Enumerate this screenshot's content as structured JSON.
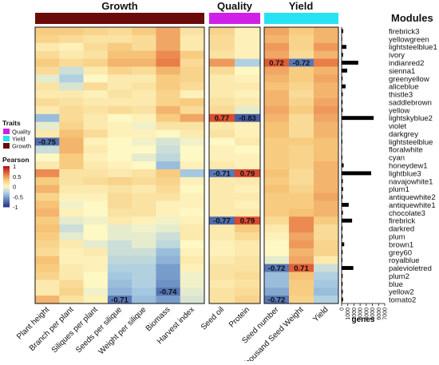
{
  "chart_data": {
    "type": "heatmap",
    "groups": [
      {
        "name": "Growth",
        "color": "#6b0a0a"
      },
      {
        "name": "Quality",
        "color": "#d020e8"
      },
      {
        "name": "Yield",
        "color": "#27e3f2"
      }
    ],
    "columns": [
      "Plant height",
      "Branch per plant",
      "Siliques per plant",
      "Seeds per silique",
      "Weight per silique",
      "Biomass",
      "Harvest index",
      "Seed oil",
      "Protein",
      "Seed number",
      "Thousand Seed Weight",
      "Yield"
    ],
    "column_groups": [
      "Growth",
      "Growth",
      "Growth",
      "Growth",
      "Growth",
      "Growth",
      "Growth",
      "Quality",
      "Quality",
      "Yield",
      "Yield",
      "Yield"
    ],
    "modules_title": "Modules",
    "modules": [
      "firebrick3",
      "yellowgreen",
      "lightsteelblue1",
      "ivory",
      "indianred2",
      "sienna1",
      "greenyellow",
      "aliceblue",
      "thistle3",
      "saddlebrown",
      "yellow",
      "lightskyblue2",
      "violet",
      "darkgrey",
      "lightsteelblue",
      "floralwhite",
      "cyan",
      "honeydew1",
      "lightblue3",
      "navajowhite1",
      "plum1",
      "antiquewhite2",
      "antiquewhite1",
      "chocolate3",
      "firebrick",
      "darkred",
      "plum",
      "brown1",
      "grey60",
      "royalblue",
      "palevioletred",
      "plum2",
      "blue",
      "yellow2",
      "tomato2"
    ],
    "values": [
      [
        0.3,
        0.3,
        0.25,
        0.2,
        0.3,
        0.45,
        0.15,
        0.25,
        0.05,
        0.45,
        0.3,
        0.4
      ],
      [
        0.25,
        0.2,
        0.15,
        0.15,
        0.2,
        0.45,
        0.1,
        0.2,
        0.05,
        0.4,
        0.25,
        0.4
      ],
      [
        0.1,
        0.05,
        0.2,
        0.3,
        0.2,
        0.45,
        0.1,
        0.2,
        0.05,
        0.5,
        0.25,
        0.5
      ],
      [
        0.2,
        0.1,
        0.15,
        0.35,
        0.35,
        0.55,
        0.3,
        0.15,
        0.05,
        0.45,
        0.2,
        0.4
      ],
      [
        0.3,
        0.2,
        0.25,
        0.4,
        0.4,
        0.6,
        0.2,
        0.5,
        -0.3,
        0.72,
        -0.72,
        0.6
      ],
      [
        0.2,
        -0.2,
        0.1,
        0.25,
        0.2,
        0.4,
        0.25,
        0.2,
        0.0,
        0.45,
        0.3,
        0.4
      ],
      [
        -0.1,
        -0.3,
        0.0,
        0.1,
        0.1,
        0.3,
        0.25,
        0.1,
        0.05,
        0.4,
        0.3,
        0.45
      ],
      [
        0.15,
        -0.15,
        0.2,
        0.1,
        0.15,
        0.3,
        0.2,
        0.1,
        0.1,
        0.35,
        0.25,
        0.4
      ],
      [
        0.1,
        0.1,
        0.05,
        0.15,
        0.1,
        0.25,
        0.05,
        0.1,
        0.05,
        0.4,
        0.2,
        0.4
      ],
      [
        0.2,
        0.15,
        0.1,
        0.1,
        0.1,
        0.25,
        0.3,
        0.15,
        0.1,
        0.4,
        0.25,
        0.45
      ],
      [
        0.1,
        0.2,
        0.15,
        0.2,
        0.15,
        0.4,
        0.2,
        0.2,
        -0.1,
        0.45,
        0.3,
        0.5
      ],
      [
        -0.4,
        0.2,
        0.1,
        0.0,
        0.05,
        0.3,
        0.45,
        0.77,
        -0.83,
        0.4,
        0.2,
        0.45
      ],
      [
        -0.1,
        0.25,
        0.1,
        0.05,
        -0.05,
        0.15,
        0.15,
        0.1,
        0.05,
        0.35,
        0.2,
        0.4
      ],
      [
        0.1,
        0.35,
        0.2,
        0.05,
        0.05,
        0.0,
        0.1,
        0.15,
        0.05,
        0.35,
        0.2,
        0.4
      ],
      [
        -0.75,
        0.4,
        0.05,
        0.0,
        -0.05,
        -0.15,
        -0.05,
        0.0,
        0.1,
        0.3,
        0.3,
        0.35
      ],
      [
        -0.2,
        0.4,
        0.1,
        0.0,
        0.0,
        -0.2,
        0.0,
        0.05,
        0.0,
        0.3,
        0.25,
        0.35
      ],
      [
        0.0,
        0.3,
        0.05,
        0.0,
        -0.1,
        -0.25,
        0.0,
        0.05,
        0.05,
        0.3,
        0.25,
        0.35
      ],
      [
        0.1,
        0.3,
        0.1,
        0.05,
        0.0,
        -0.4,
        0.05,
        0.1,
        0.05,
        0.3,
        0.25,
        0.4
      ],
      [
        0.55,
        0.15,
        0.15,
        0.1,
        0.15,
        0.3,
        -0.35,
        -0.71,
        0.79,
        0.35,
        0.2,
        0.4
      ],
      [
        0.3,
        0.15,
        0.2,
        0.25,
        0.2,
        0.25,
        0.05,
        0.1,
        0.1,
        0.3,
        0.2,
        0.4
      ],
      [
        0.4,
        0.1,
        0.1,
        0.15,
        0.1,
        0.2,
        0.0,
        0.1,
        0.05,
        0.35,
        0.25,
        0.4
      ],
      [
        0.25,
        0.05,
        0.05,
        0.2,
        0.15,
        0.15,
        0.05,
        0.1,
        0.1,
        0.3,
        0.3,
        0.45
      ],
      [
        0.35,
        -0.05,
        0.0,
        0.2,
        0.15,
        0.05,
        0.05,
        0.1,
        0.05,
        0.3,
        0.3,
        0.4
      ],
      [
        0.4,
        0.05,
        0.0,
        0.15,
        0.15,
        0.05,
        0.0,
        0.1,
        0.1,
        0.3,
        0.35,
        0.4
      ],
      [
        0.3,
        -0.1,
        -0.05,
        0.1,
        0.05,
        -0.05,
        0.05,
        -0.77,
        0.79,
        0.2,
        0.55,
        0.3
      ],
      [
        0.35,
        -0.2,
        0.0,
        -0.1,
        -0.05,
        -0.1,
        0.1,
        0.1,
        0.3,
        0.1,
        0.55,
        0.2
      ],
      [
        0.3,
        -0.1,
        0.0,
        -0.1,
        -0.1,
        -0.2,
        0.1,
        0.1,
        0.2,
        0.05,
        0.45,
        0.2
      ],
      [
        0.25,
        0.1,
        -0.1,
        -0.2,
        -0.1,
        -0.25,
        0.0,
        0.05,
        0.1,
        0.0,
        0.5,
        0.25
      ],
      [
        0.2,
        0.05,
        0.1,
        -0.2,
        -0.2,
        -0.4,
        0.05,
        0.05,
        0.1,
        0.0,
        0.4,
        0.25
      ],
      [
        0.35,
        0.05,
        0.05,
        -0.25,
        -0.25,
        -0.45,
        0.1,
        0.1,
        0.15,
        -0.1,
        0.45,
        0.1
      ],
      [
        0.3,
        0.1,
        0.05,
        -0.3,
        -0.3,
        -0.55,
        0.05,
        0.15,
        0.15,
        -0.72,
        0.71,
        -0.2
      ],
      [
        0.25,
        0.1,
        0.0,
        -0.35,
        -0.3,
        -0.55,
        -0.05,
        0.15,
        0.2,
        -0.4,
        0.35,
        -0.3
      ],
      [
        0.1,
        0.2,
        0.0,
        -0.4,
        -0.3,
        -0.6,
        -0.05,
        0.1,
        0.15,
        -0.4,
        0.3,
        -0.35
      ],
      [
        0.1,
        0.25,
        -0.05,
        -0.45,
        -0.35,
        -0.74,
        -0.1,
        0.15,
        0.2,
        -0.5,
        0.3,
        -0.4
      ],
      [
        0.4,
        0.15,
        0.05,
        -0.71,
        -0.4,
        -0.55,
        -0.15,
        0.15,
        0.25,
        -0.72,
        0.25,
        -0.3
      ]
    ],
    "annotations": [
      {
        "row": 4,
        "col": 9,
        "label": "0.72"
      },
      {
        "row": 4,
        "col": 10,
        "label": "-0.72"
      },
      {
        "row": 11,
        "col": 7,
        "label": "0.77"
      },
      {
        "row": 11,
        "col": 8,
        "label": "-0.83"
      },
      {
        "row": 14,
        "col": 0,
        "label": "-0.75"
      },
      {
        "row": 18,
        "col": 7,
        "label": "-0.71"
      },
      {
        "row": 18,
        "col": 8,
        "label": "0.79"
      },
      {
        "row": 24,
        "col": 7,
        "label": "-0.77"
      },
      {
        "row": 24,
        "col": 8,
        "label": "0.79"
      },
      {
        "row": 30,
        "col": 9,
        "label": "-0.72"
      },
      {
        "row": 30,
        "col": 10,
        "label": "0.71"
      },
      {
        "row": 33,
        "col": 5,
        "label": "-0.74"
      },
      {
        "row": 34,
        "col": 3,
        "label": "-0.71"
      },
      {
        "row": 34,
        "col": 9,
        "label": "-0.72"
      }
    ],
    "genes": [
      260,
      100,
      780,
      230,
      2700,
      900,
      160,
      650,
      190,
      160,
      180,
      5200,
      100,
      100,
      130,
      90,
      130,
      330,
      4800,
      200,
      230,
      170,
      1150,
      210,
      1700,
      150,
      160,
      420,
      170,
      130,
      1900,
      170,
      160,
      190,
      230
    ],
    "genes_axis": {
      "label": "genes",
      "ticks": [
        "0",
        "1000",
        "2000",
        "3000",
        "4000",
        "5000",
        "6000",
        "7000"
      ],
      "max": 7000
    },
    "legend_traits": {
      "title": "Traits",
      "items": [
        {
          "name": "Quality",
          "color": "#d020e8"
        },
        {
          "name": "Yield",
          "color": "#27e3f2"
        },
        {
          "name": "Growth",
          "color": "#6b0a0a"
        }
      ]
    },
    "legend_pearson": {
      "title": "Pearson",
      "ticks": [
        "1",
        "0.5",
        "0",
        "-0.5",
        "-1"
      ],
      "values": [
        1,
        0.5,
        0,
        -0.5,
        -1
      ]
    },
    "colormap": {
      "min": -1,
      "max": 1,
      "stops": [
        "#2d3587",
        "#5e83bd",
        "#a9cce3",
        "#fef8c4",
        "#f6c779",
        "#e66a3c",
        "#b4141c"
      ]
    }
  }
}
